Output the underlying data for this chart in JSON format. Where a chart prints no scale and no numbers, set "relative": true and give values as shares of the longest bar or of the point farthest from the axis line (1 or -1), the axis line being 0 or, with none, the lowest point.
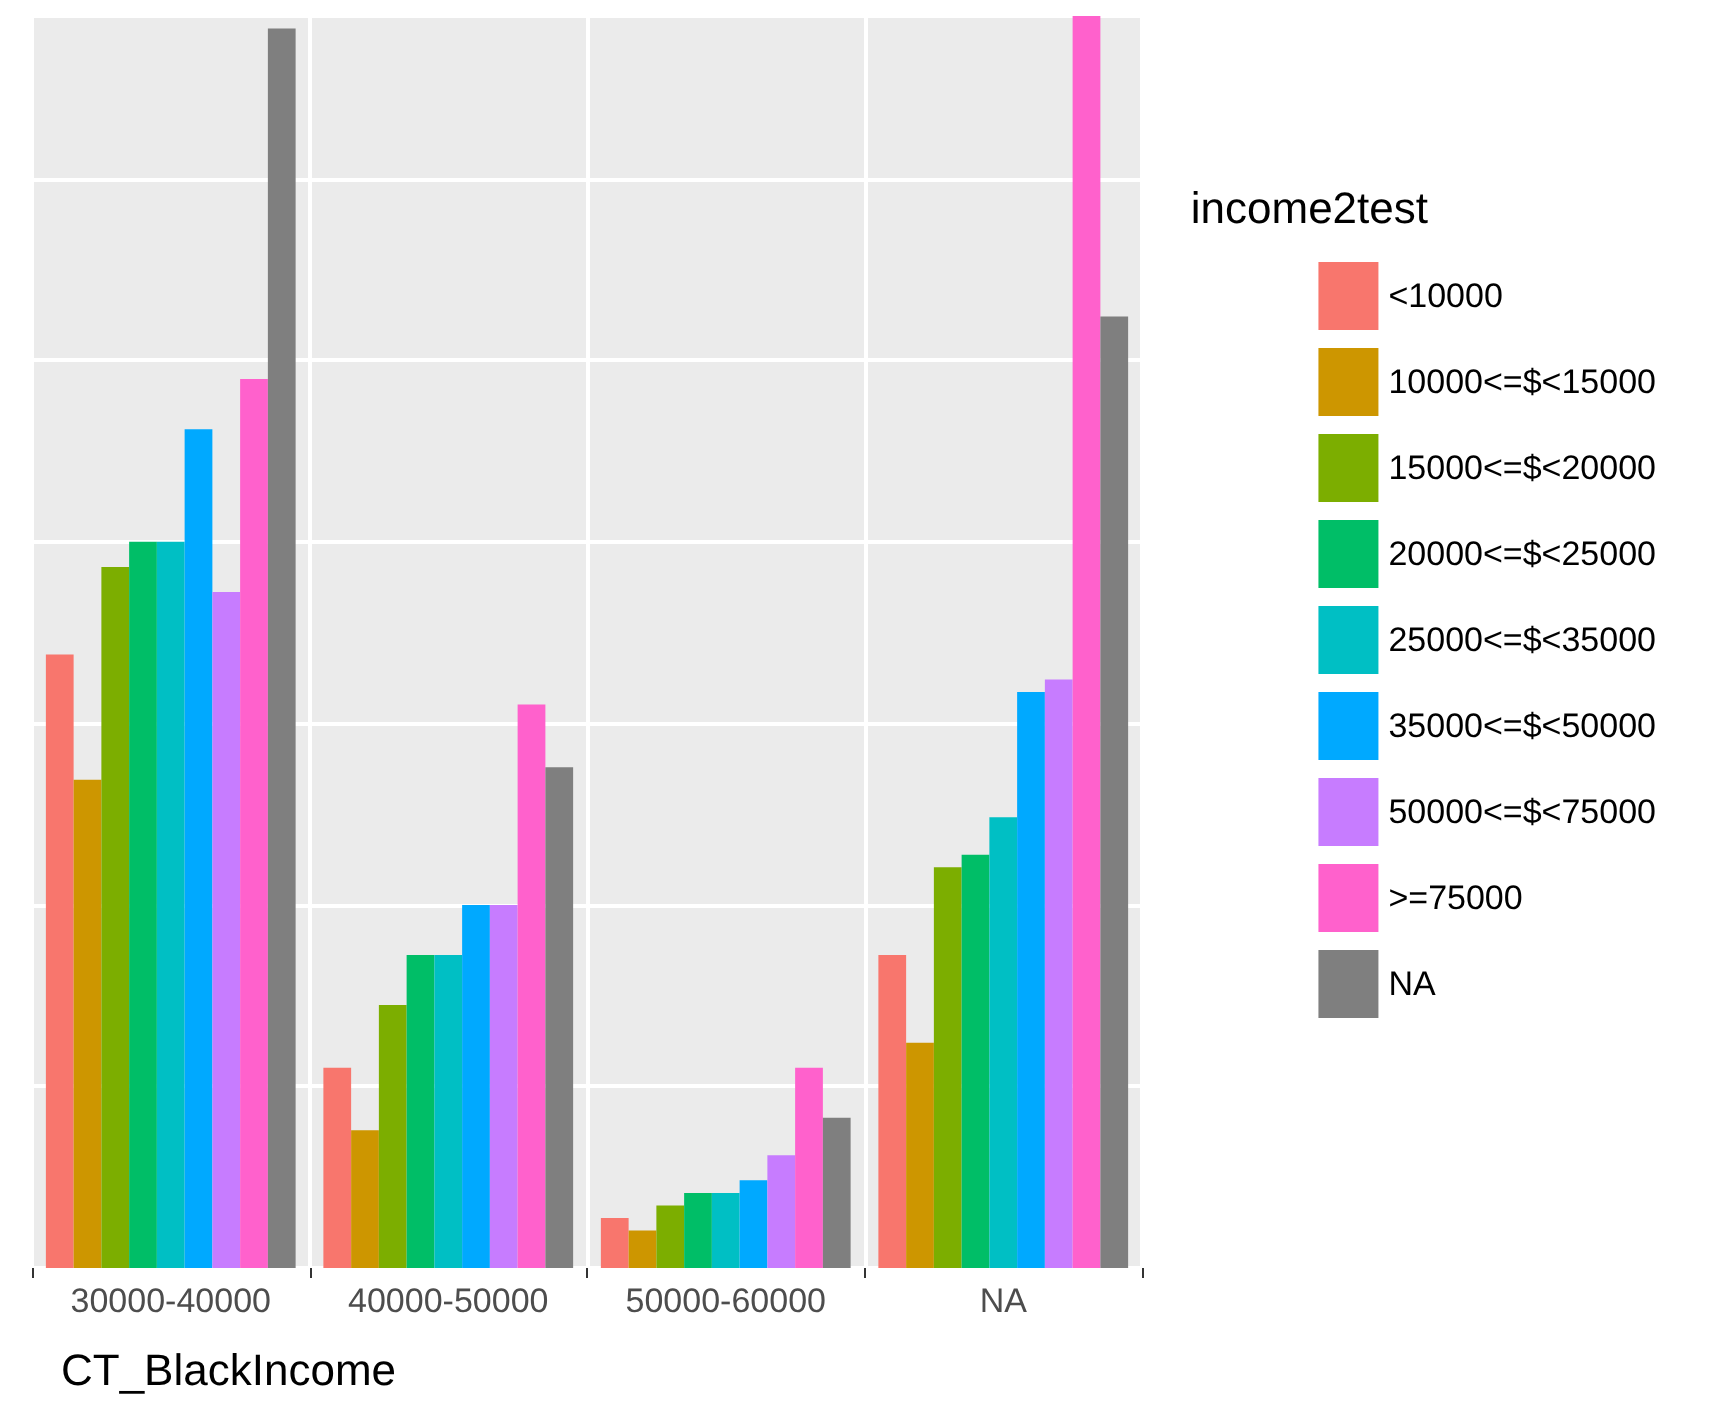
{
  "chart_data": {
    "type": "bar",
    "relative": true,
    "xlabel": "CT_BlackIncome",
    "legend_title": "income2test",
    "legend": "right",
    "grid": true,
    "categories": [
      "30000-40000",
      "40000-50000",
      "50000-60000",
      "NA"
    ],
    "series": [
      {
        "name": "<10000",
        "color": "#f8766d",
        "values": [
          0.49,
          0.16,
          0.04,
          0.25
        ]
      },
      {
        "name": "10000<=$<15000",
        "color": "#cd9600",
        "values": [
          0.39,
          0.11,
          0.03,
          0.18
        ]
      },
      {
        "name": "15000<=$<20000",
        "color": "#7cae00",
        "values": [
          0.56,
          0.21,
          0.05,
          0.32
        ]
      },
      {
        "name": "20000<=$<25000",
        "color": "#00be67",
        "values": [
          0.58,
          0.25,
          0.06,
          0.33
        ]
      },
      {
        "name": "25000<=$<35000",
        "color": "#00bfc4",
        "values": [
          0.58,
          0.25,
          0.06,
          0.36
        ]
      },
      {
        "name": "35000<=$<50000",
        "color": "#00a9ff",
        "values": [
          0.67,
          0.29,
          0.07,
          0.46
        ]
      },
      {
        "name": "50000<=$<75000",
        "color": "#c77cff",
        "values": [
          0.54,
          0.29,
          0.09,
          0.47
        ]
      },
      {
        "name": ">=75000",
        "color": "#ff61cc",
        "values": [
          0.71,
          0.45,
          0.16,
          1
        ]
      },
      {
        "name": "NA",
        "color": "#7f7f7f",
        "values": [
          0.99,
          0.4,
          0.12,
          0.76
        ]
      }
    ]
  }
}
